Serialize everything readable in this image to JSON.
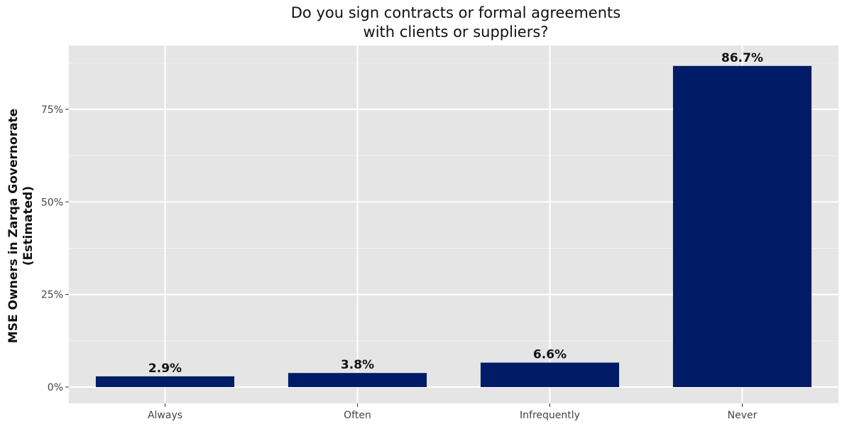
{
  "colors": {
    "panel_background": "#e5e5e5",
    "grid_major": "#ffffff",
    "grid_minor": "#f2f2f2",
    "bar_fill": "#001c66",
    "tick_color": "#333333"
  },
  "chart_data": {
    "type": "bar",
    "title_lines": [
      "Do you sign contracts or formal agreements",
      "with clients or suppliers?"
    ],
    "ylabel_lines": [
      "MSE Owners in Zarqa Governorate",
      "(Estimated)"
    ],
    "xlabel": "",
    "categories": [
      "Always",
      "Often",
      "Infrequently",
      "Never"
    ],
    "values": [
      2.9,
      3.8,
      6.6,
      86.7
    ],
    "data_labels": [
      "2.9%",
      "3.8%",
      "6.6%",
      "86.7%"
    ],
    "ylim": [
      0,
      91
    ],
    "y_ticks": [
      0,
      25,
      50,
      75
    ],
    "y_tick_labels": [
      "0%",
      "25%",
      "50%",
      "75%"
    ],
    "y_minor_ticks": [
      12.5,
      37.5,
      62.5,
      87.5
    ],
    "grid": true,
    "legend": "none"
  }
}
